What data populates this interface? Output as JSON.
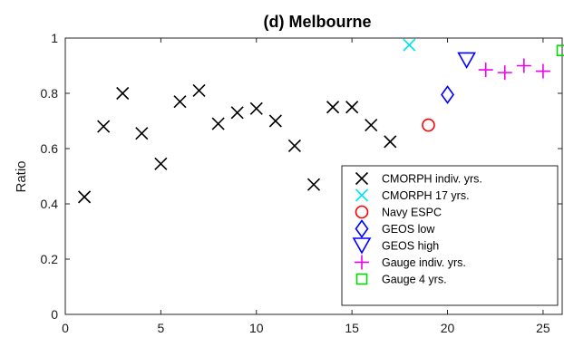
{
  "chart_data": {
    "type": "scatter",
    "title": "(d) Melbourne",
    "xlabel": "",
    "ylabel": "Ratio",
    "xlim": [
      0,
      26
    ],
    "ylim": [
      0,
      1
    ],
    "xticks": [
      "0",
      "5",
      "10",
      "15",
      "20",
      "25"
    ],
    "yticks": [
      "0",
      "0.2",
      "0.4",
      "0.6",
      "0.8",
      "1"
    ],
    "grid": false,
    "legend_position": "bottom-right",
    "series": [
      {
        "name": "CMORPH indiv. yrs.",
        "marker": "x",
        "color": "#000000",
        "points": [
          [
            1,
            0.425
          ],
          [
            2,
            0.68
          ],
          [
            3,
            0.8
          ],
          [
            4,
            0.655
          ],
          [
            5,
            0.545
          ],
          [
            6,
            0.77
          ],
          [
            7,
            0.81
          ],
          [
            8,
            0.69
          ],
          [
            9,
            0.73
          ],
          [
            10,
            0.745
          ],
          [
            11,
            0.7
          ],
          [
            12,
            0.61
          ],
          [
            13,
            0.47
          ],
          [
            14,
            0.75
          ],
          [
            15,
            0.75
          ],
          [
            16,
            0.685
          ],
          [
            17,
            0.625
          ]
        ]
      },
      {
        "name": "CMORPH 17 yrs.",
        "marker": "x",
        "color": "#00e5f0",
        "points": [
          [
            18,
            0.975
          ]
        ]
      },
      {
        "name": "Navy ESPC",
        "marker": "circle",
        "color": "#ff0000",
        "points": [
          [
            19,
            0.685
          ]
        ]
      },
      {
        "name": "GEOS low",
        "marker": "diamond",
        "color": "#0000ff",
        "points": [
          [
            20,
            0.795
          ]
        ]
      },
      {
        "name": "GEOS high",
        "marker": "triangle-down",
        "color": "#0000ff",
        "points": [
          [
            21,
            0.92
          ]
        ]
      },
      {
        "name": "Gauge indiv. yrs.",
        "marker": "plus",
        "color": "#ee00ee",
        "points": [
          [
            22,
            0.885
          ],
          [
            23,
            0.875
          ],
          [
            24,
            0.9
          ],
          [
            25,
            0.88
          ]
        ]
      },
      {
        "name": "Gauge 4 yrs.",
        "marker": "square",
        "color": "#00dd00",
        "points": [
          [
            26,
            0.955
          ]
        ]
      }
    ]
  }
}
